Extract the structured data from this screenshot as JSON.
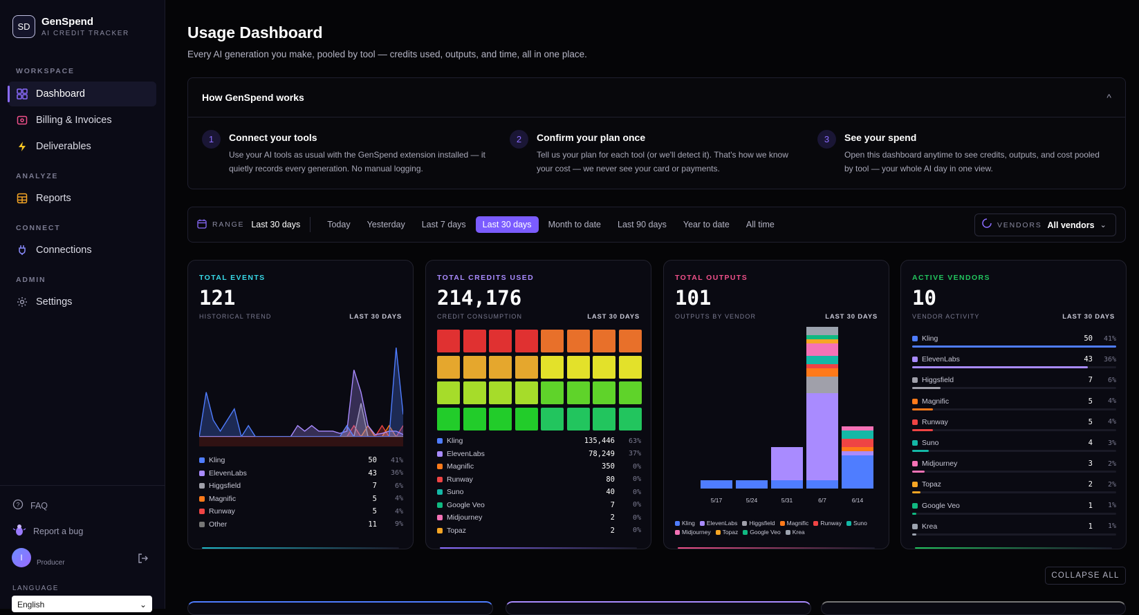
{
  "brand": {
    "logo": "SD",
    "name": "GenSpend",
    "subtitle": "AI CREDIT TRACKER"
  },
  "sidebar": {
    "sections": {
      "workspace": "WORKSPACE",
      "analyze": "ANALYZE",
      "connect": "CONNECT",
      "admin": "ADMIN"
    },
    "items": [
      {
        "label": "Dashboard",
        "icon": "grid-icon"
      },
      {
        "label": "Billing & Invoices",
        "icon": "receipt-icon"
      },
      {
        "label": "Deliverables",
        "icon": "bolt-icon"
      },
      {
        "label": "Reports",
        "icon": "report-icon"
      },
      {
        "label": "Connections",
        "icon": "plug-icon"
      },
      {
        "label": "Settings",
        "icon": "gear-icon"
      }
    ],
    "faq": "FAQ",
    "bug": "Report a bug",
    "user_initial": "I",
    "user_role": "Producer",
    "language_label": "LANGUAGE",
    "language_value": "English"
  },
  "header": {
    "title": "Usage Dashboard",
    "subtitle": "Every AI generation you make, pooled by tool — credits used, outputs, and time, all in one place."
  },
  "how": {
    "title": "How GenSpend works",
    "toggle": "^",
    "steps": [
      {
        "num": "1",
        "title": "Connect your tools",
        "desc": "Use your AI tools as usual with the GenSpend extension installed — it quietly records every generation. No manual logging."
      },
      {
        "num": "2",
        "title": "Confirm your plan once",
        "desc": "Tell us your plan for each tool (or we'll detect it). That's how we know your cost — we never see your card or payments."
      },
      {
        "num": "3",
        "title": "See your spend",
        "desc": "Open this dashboard anytime to see credits, outputs, and cost pooled by tool — your whole AI day in one view."
      }
    ]
  },
  "range": {
    "label": "RANGE",
    "current": "Last 30 days",
    "options": [
      "Today",
      "Yesterday",
      "Last 7 days",
      "Last 30 days",
      "Month to date",
      "Last 90 days",
      "Year to date",
      "All time"
    ],
    "selected": "Last 30 days",
    "vendors_label": "VENDORS",
    "vendors_value": "All vendors"
  },
  "colors": {
    "Kling": "#4f7dff",
    "ElevenLabs": "#a98bff",
    "Higgsfield": "#a0a0aa",
    "Magnific": "#ff7a1a",
    "Runway": "#ef4444",
    "Suno": "#14b8a6",
    "Midjourney": "#f472b6",
    "Topaz": "#f5a524",
    "Google Veo": "#10b981",
    "Krea": "#9ca3af",
    "Other": "#777777"
  },
  "cards": {
    "events": {
      "label": "TOTAL EVENTS",
      "value": "121",
      "sub": "HISTORICAL TREND",
      "range": "LAST 30 DAYS",
      "legend": [
        {
          "name": "Kling",
          "value": "50",
          "pct": "41%"
        },
        {
          "name": "ElevenLabs",
          "value": "43",
          "pct": "36%"
        },
        {
          "name": "Higgsfield",
          "value": "7",
          "pct": "6%"
        },
        {
          "name": "Magnific",
          "value": "5",
          "pct": "4%"
        },
        {
          "name": "Runway",
          "value": "5",
          "pct": "4%"
        },
        {
          "name": "Other",
          "value": "11",
          "pct": "9%"
        }
      ]
    },
    "credits": {
      "label": "TOTAL CREDITS USED",
      "value": "214,176",
      "sub": "CREDIT CONSUMPTION",
      "range": "LAST 30 DAYS",
      "legend": [
        {
          "name": "Kling",
          "value": "135,446",
          "pct": "63%"
        },
        {
          "name": "ElevenLabs",
          "value": "78,249",
          "pct": "37%"
        },
        {
          "name": "Magnific",
          "value": "350",
          "pct": "0%"
        },
        {
          "name": "Runway",
          "value": "80",
          "pct": "0%"
        },
        {
          "name": "Suno",
          "value": "40",
          "pct": "0%"
        },
        {
          "name": "Google Veo",
          "value": "7",
          "pct": "0%"
        },
        {
          "name": "Midjourney",
          "value": "2",
          "pct": "0%"
        },
        {
          "name": "Topaz",
          "value": "2",
          "pct": "0%"
        }
      ],
      "heatmap_colors": [
        [
          "#e03131",
          "#e03131",
          "#e03131",
          "#e03131",
          "#e8702a",
          "#e8702a",
          "#e8702a",
          "#e8702a"
        ],
        [
          "#e5a72d",
          "#e5a72d",
          "#e5a72d",
          "#e5a72d",
          "#e3e12a",
          "#e3e12a",
          "#e3e12a",
          "#e3e12a"
        ],
        [
          "#a6dc2a",
          "#a6dc2a",
          "#a6dc2a",
          "#a6dc2a",
          "#5fd32a",
          "#5fd32a",
          "#5fd32a",
          "#5fd32a"
        ],
        [
          "#22cc2a",
          "#22cc2a",
          "#22cc2a",
          "#22cc2a",
          "#22c55e",
          "#22c55e",
          "#22c55e",
          "#22c55e"
        ]
      ]
    },
    "outputs": {
      "label": "TOTAL OUTPUTS",
      "value": "101",
      "sub": "OUTPUTS BY VENDOR",
      "range": "LAST 30 DAYS",
      "legend": [
        "Kling",
        "ElevenLabs",
        "Higgsfield",
        "Magnific",
        "Runway",
        "Suno",
        "Midjourney",
        "Topaz",
        "Google Veo",
        "Krea"
      ]
    },
    "vendors": {
      "label": "ACTIVE VENDORS",
      "value": "10",
      "sub": "VENDOR ACTIVITY",
      "range": "LAST 30 DAYS",
      "rows": [
        {
          "name": "Kling",
          "value": "50",
          "pct": "41%",
          "fraction": 1.0
        },
        {
          "name": "ElevenLabs",
          "value": "43",
          "pct": "36%",
          "fraction": 0.86
        },
        {
          "name": "Higgsfield",
          "value": "7",
          "pct": "6%",
          "fraction": 0.14
        },
        {
          "name": "Magnific",
          "value": "5",
          "pct": "4%",
          "fraction": 0.1
        },
        {
          "name": "Runway",
          "value": "5",
          "pct": "4%",
          "fraction": 0.1
        },
        {
          "name": "Suno",
          "value": "4",
          "pct": "3%",
          "fraction": 0.08
        },
        {
          "name": "Midjourney",
          "value": "3",
          "pct": "2%",
          "fraction": 0.06
        },
        {
          "name": "Topaz",
          "value": "2",
          "pct": "2%",
          "fraction": 0.04
        },
        {
          "name": "Google Veo",
          "value": "1",
          "pct": "1%",
          "fraction": 0.02
        },
        {
          "name": "Krea",
          "value": "1",
          "pct": "1%",
          "fraction": 0.02
        }
      ]
    }
  },
  "collapse_label": "COLLAPSE ALL",
  "chart_data": [
    {
      "type": "area",
      "title": "TOTAL EVENTS",
      "x": [
        1,
        2,
        3,
        4,
        5,
        6,
        7,
        8,
        9,
        10,
        11,
        12,
        13,
        14,
        15,
        16,
        17,
        18,
        19,
        20,
        21,
        22,
        23,
        24,
        25,
        26,
        27,
        28,
        29,
        30
      ],
      "series": [
        {
          "name": "Kling",
          "values": [
            0,
            4,
            1.5,
            0.5,
            1.5,
            2.5,
            0,
            1,
            0,
            0,
            0,
            0,
            0,
            0,
            0,
            0,
            0,
            0,
            0,
            0,
            0,
            1,
            0,
            0,
            0,
            0,
            0,
            0,
            8,
            2
          ]
        },
        {
          "name": "ElevenLabs",
          "values": [
            0,
            0,
            0,
            0,
            0,
            0,
            0,
            0,
            0,
            0,
            0,
            0,
            0,
            0,
            1,
            0.5,
            1,
            0.5,
            0.5,
            0.5,
            0.3,
            0.5,
            6,
            4,
            1,
            0.2,
            0.3,
            0.5,
            0.5,
            0.2
          ]
        },
        {
          "name": "Higgsfield",
          "values": [
            0,
            0,
            0,
            0,
            0,
            0,
            0,
            0,
            0,
            0,
            0,
            0,
            0,
            0,
            0,
            0,
            0,
            0,
            0,
            0,
            0,
            0,
            0,
            3,
            0,
            0,
            0,
            0,
            0,
            0
          ]
        },
        {
          "name": "Magnific",
          "values": [
            0,
            0,
            0,
            0,
            0,
            0,
            0,
            0,
            0,
            0,
            0,
            0,
            0,
            0,
            0,
            0,
            0,
            0,
            0,
            0,
            0,
            1,
            0,
            0,
            1,
            0,
            0,
            1,
            0,
            0
          ]
        },
        {
          "name": "Runway",
          "values": [
            0,
            0,
            0,
            0,
            0,
            0,
            0,
            0,
            0,
            0,
            0,
            0,
            0,
            0,
            0,
            0,
            0,
            0,
            0,
            0,
            0,
            0,
            1,
            0,
            0,
            0,
            1,
            0,
            0,
            1
          ]
        }
      ]
    },
    {
      "type": "bar",
      "title": "TOTAL OUTPUTS",
      "categories": [
        "5/17",
        "5/24",
        "5/31",
        "6/7",
        "6/14"
      ],
      "stacked": true,
      "series": [
        {
          "name": "Kling",
          "values": [
            2,
            2,
            2,
            2,
            8
          ]
        },
        {
          "name": "ElevenLabs",
          "values": [
            0,
            0,
            8,
            21,
            1
          ]
        },
        {
          "name": "Higgsfield",
          "values": [
            0,
            0,
            0,
            4,
            0
          ]
        },
        {
          "name": "Magnific",
          "values": [
            0,
            0,
            0,
            2,
            1
          ]
        },
        {
          "name": "Runway",
          "values": [
            0,
            0,
            0,
            1,
            2
          ]
        },
        {
          "name": "Suno",
          "values": [
            0,
            0,
            0,
            2,
            2
          ]
        },
        {
          "name": "Midjourney",
          "values": [
            0,
            0,
            0,
            3,
            1
          ]
        },
        {
          "name": "Topaz",
          "values": [
            0,
            0,
            0,
            1,
            0
          ]
        },
        {
          "name": "Google Veo",
          "values": [
            0,
            0,
            0,
            1,
            0
          ]
        },
        {
          "name": "Krea",
          "values": [
            0,
            0,
            0,
            2,
            0
          ]
        }
      ]
    }
  ]
}
